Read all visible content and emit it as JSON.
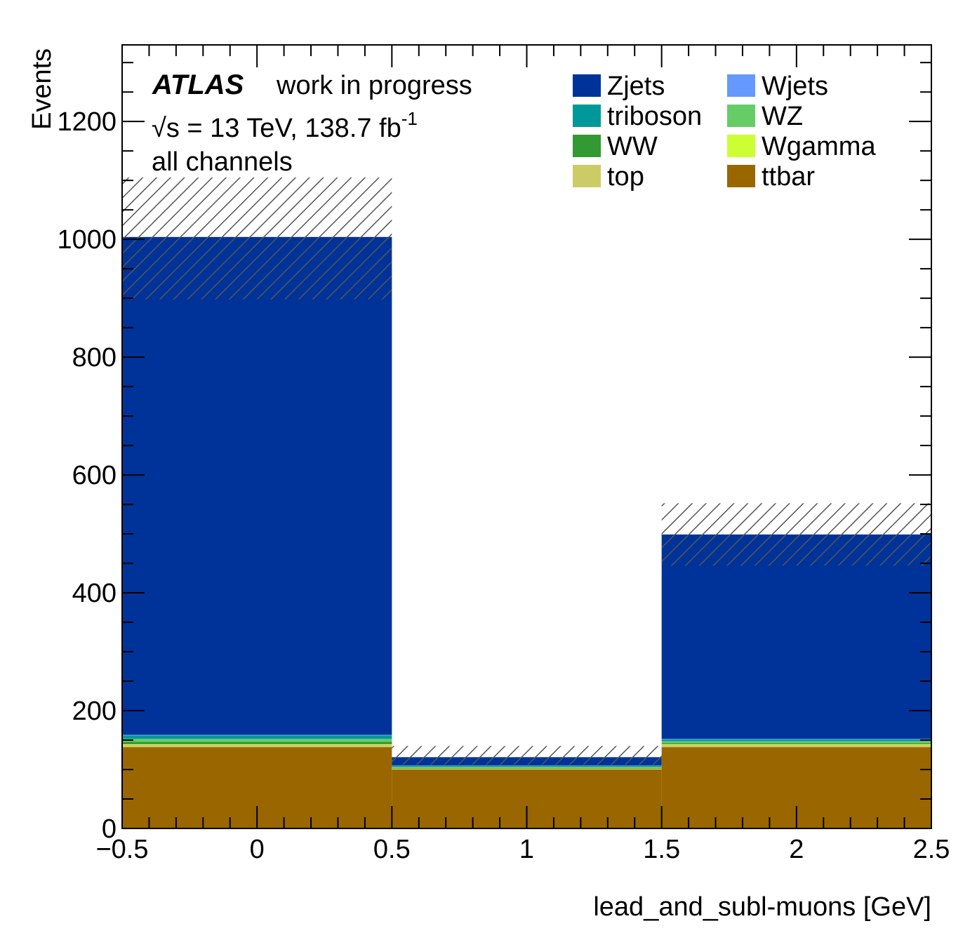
{
  "chart_data": {
    "type": "bar",
    "subtype": "stacked-histogram",
    "xlabel": "lead_and_subl-muons [GeV]",
    "ylabel": "Events",
    "xlim": [
      -0.5,
      2.5
    ],
    "ylim": [
      0,
      1330
    ],
    "x_ticks": [
      -0.5,
      0,
      0.5,
      1,
      1.5,
      2,
      2.5
    ],
    "x_tick_labels": [
      "−0.5",
      "0",
      "0.5",
      "1",
      "1.5",
      "2",
      "2.5"
    ],
    "y_ticks": [
      0,
      200,
      400,
      600,
      800,
      1000,
      1200
    ],
    "y_tick_labels": [
      "0",
      "200",
      "400",
      "600",
      "800",
      "1000",
      "1200"
    ],
    "bin_edges": [
      -0.5,
      0.5,
      1.5,
      2.5
    ],
    "stack_order": [
      "ttbar",
      "top",
      "Wgamma",
      "WW",
      "WZ",
      "triboson",
      "Wjets",
      "Zjets"
    ],
    "series": [
      {
        "name": "ttbar",
        "color": "#996600",
        "values": [
          138,
          100,
          138
        ]
      },
      {
        "name": "top",
        "color": "#cccc66",
        "values": [
          4,
          1,
          4
        ]
      },
      {
        "name": "Wgamma",
        "color": "#ccff33",
        "values": [
          1,
          0.5,
          1
        ]
      },
      {
        "name": "WW",
        "color": "#339933",
        "values": [
          4,
          1,
          2
        ]
      },
      {
        "name": "WZ",
        "color": "#66cc66",
        "values": [
          5,
          2,
          3
        ]
      },
      {
        "name": "triboson",
        "color": "#009999",
        "values": [
          6,
          2,
          3
        ]
      },
      {
        "name": "Wjets",
        "color": "#6699ff",
        "values": [
          1,
          0.5,
          1
        ]
      },
      {
        "name": "Zjets",
        "color": "#003399",
        "values": [
          845,
          14,
          347
        ]
      }
    ],
    "uncertainty": {
      "label": "stat+syst uncertainty band (hatched)",
      "low": [
        898,
        108,
        446
      ],
      "high": [
        1105,
        140,
        552
      ]
    },
    "atlas_label": "ATLAS",
    "status_label": "work in progress",
    "energy_lumi": {
      "sqrt": "√",
      "s_text": "s = 13 TeV, 138.7 fb",
      "sup": "-1"
    },
    "channel_label": "all channels",
    "legend": {
      "placement": "top-right",
      "columns": 2,
      "entries": [
        {
          "label": "Zjets",
          "color": "#003399"
        },
        {
          "label": "Wjets",
          "color": "#6699ff"
        },
        {
          "label": "triboson",
          "color": "#009999"
        },
        {
          "label": "WZ",
          "color": "#66cc66"
        },
        {
          "label": "WW",
          "color": "#339933"
        },
        {
          "label": "Wgamma",
          "color": "#ccff33"
        },
        {
          "label": "top",
          "color": "#cccc66"
        },
        {
          "label": "ttbar",
          "color": "#996600"
        }
      ]
    }
  }
}
